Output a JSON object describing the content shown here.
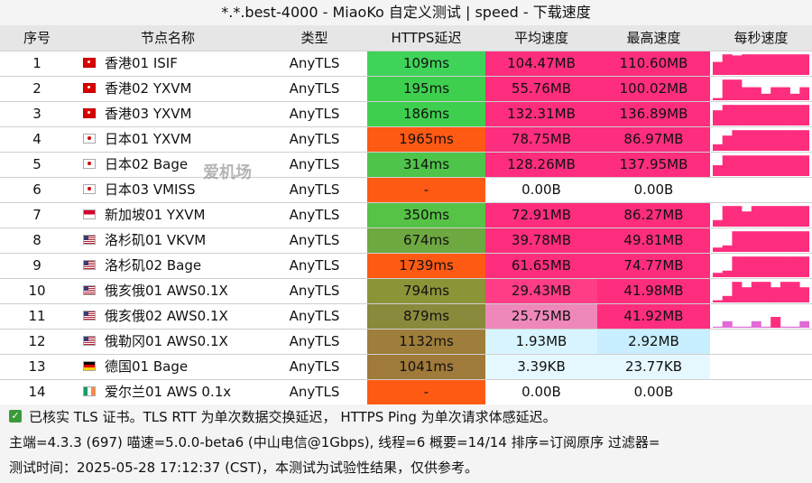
{
  "title": "*.*.best-4000 - MiaoKo 自定义测试 | speed - 下载速度",
  "columns": [
    "序号",
    "节点名称",
    "类型",
    "HTTPS延迟",
    "平均速度",
    "最高速度",
    "每秒速度"
  ],
  "colors": {
    "speed_pink": "#ff2d7e",
    "speed_lightpink": "#ee88bb",
    "speed_lightblue": "#d8f5ff",
    "lat_green": "#3fcf4f",
    "lat_orange": "#ff5a14",
    "lat_brown": "#a67a3a"
  },
  "rows": [
    {
      "idx": "1",
      "flag": "hk",
      "name": "香港01 ISIF",
      "type": "AnyTLS",
      "lat": "109ms",
      "lat_color": "#3fd35a",
      "avg": "104.47MB",
      "avg_color": "#ff2d7e",
      "max": "110.60MB",
      "max_color": "#ff2d7e",
      "spark": [
        0.6,
        0.95,
        0.9,
        0.95,
        0.95,
        0.95,
        0.95,
        0.95,
        0.95,
        0.95
      ]
    },
    {
      "idx": "2",
      "flag": "hk",
      "name": "香港02 YXVM",
      "type": "AnyTLS",
      "lat": "195ms",
      "lat_color": "#3fcf4f",
      "avg": "55.76MB",
      "avg_color": "#ff2d7e",
      "max": "100.02MB",
      "max_color": "#ff2d7e",
      "spark": [
        0.1,
        0.95,
        0.95,
        0.6,
        0.6,
        0.3,
        0.6,
        0.6,
        0.3,
        0.6
      ]
    },
    {
      "idx": "3",
      "flag": "hk",
      "name": "香港03 YXVM",
      "type": "AnyTLS",
      "lat": "186ms",
      "lat_color": "#3fcf4f",
      "avg": "132.31MB",
      "avg_color": "#ff2d7e",
      "max": "136.89MB",
      "max_color": "#ff2d7e",
      "spark": [
        0.7,
        0.95,
        0.95,
        0.95,
        0.95,
        0.95,
        0.95,
        0.95,
        0.95,
        0.95
      ]
    },
    {
      "idx": "4",
      "flag": "jp",
      "name": "日本01 YXVM",
      "type": "AnyTLS",
      "lat": "1965ms",
      "lat_color": "#ff5a14",
      "avg": "78.75MB",
      "avg_color": "#ff2d7e",
      "max": "86.97MB",
      "max_color": "#ff2d7e",
      "spark": [
        0.3,
        0.7,
        0.95,
        0.95,
        0.95,
        0.95,
        0.95,
        0.95,
        0.95,
        0.95
      ]
    },
    {
      "idx": "5",
      "flag": "jp",
      "name": "日本02 Bage",
      "type": "AnyTLS",
      "lat": "314ms",
      "lat_color": "#4ec44a",
      "avg": "128.26MB",
      "avg_color": "#ff2d7e",
      "max": "137.95MB",
      "max_color": "#ff2d7e",
      "spark": [
        0.5,
        0.95,
        0.95,
        0.95,
        0.95,
        0.95,
        0.95,
        0.95,
        0.95,
        0.95
      ]
    },
    {
      "idx": "6",
      "flag": "jp",
      "name": "日本03 VMISS",
      "type": "AnyTLS",
      "lat": "-",
      "lat_color": "#ff5a14",
      "avg": "0.00B",
      "avg_color": "#ffffff",
      "max": "0.00B",
      "max_color": "#ffffff",
      "spark": []
    },
    {
      "idx": "7",
      "flag": "sg",
      "name": "新加坡01 YXVM",
      "type": "AnyTLS",
      "lat": "350ms",
      "lat_color": "#56c246",
      "avg": "72.91MB",
      "avg_color": "#ff2d7e",
      "max": "86.27MB",
      "max_color": "#ff2d7e",
      "spark": [
        0.3,
        0.95,
        0.95,
        0.7,
        0.95,
        0.95,
        0.95,
        0.95,
        0.95,
        0.95
      ]
    },
    {
      "idx": "8",
      "flag": "us",
      "name": "洛杉矶01 VKVM",
      "type": "AnyTLS",
      "lat": "674ms",
      "lat_color": "#6ea840",
      "avg": "39.78MB",
      "avg_color": "#ff2d7e",
      "max": "49.81MB",
      "max_color": "#ff2d7e",
      "spark": [
        0.2,
        0.3,
        0.95,
        0.95,
        0.95,
        0.95,
        0.95,
        0.95,
        0.95,
        0.95
      ]
    },
    {
      "idx": "9",
      "flag": "us",
      "name": "洛杉矶02 Bage",
      "type": "AnyTLS",
      "lat": "1739ms",
      "lat_color": "#ff5a14",
      "avg": "61.65MB",
      "avg_color": "#ff2d7e",
      "max": "74.77MB",
      "max_color": "#ff2d7e",
      "spark": [
        0.2,
        0.3,
        0.95,
        0.95,
        0.95,
        0.95,
        0.95,
        0.95,
        0.95,
        0.95
      ]
    },
    {
      "idx": "10",
      "flag": "us",
      "name": "俄亥俄01 AWS0.1X",
      "type": "AnyTLS",
      "lat": "794ms",
      "lat_color": "#8c9438",
      "avg": "29.43MB",
      "avg_color": "#ff3d86",
      "max": "41.98MB",
      "max_color": "#ff2d7e",
      "spark": [
        0.1,
        0.3,
        0.95,
        0.7,
        0.95,
        0.95,
        0.7,
        0.95,
        0.95,
        0.7
      ]
    },
    {
      "idx": "11",
      "flag": "us",
      "name": "俄亥俄02 AWS0.1X",
      "type": "AnyTLS",
      "lat": "879ms",
      "lat_color": "#8a8a3c",
      "avg": "25.75MB",
      "avg_color": "#ee88bb",
      "max": "41.92MB",
      "max_color": "#ff2d7e",
      "spark": [
        0.05,
        0.3,
        0.05,
        0.05,
        0.3,
        0.05,
        0.5,
        0.05,
        0.05,
        0.3
      ]
    },
    {
      "idx": "12",
      "flag": "us",
      "name": "俄勒冈01 AWS0.1X",
      "type": "AnyTLS",
      "lat": "1132ms",
      "lat_color": "#9e7e3a",
      "avg": "1.93MB",
      "avg_color": "#d8f5ff",
      "max": "2.92MB",
      "max_color": "#c8eeff",
      "spark": []
    },
    {
      "idx": "13",
      "flag": "de",
      "name": "德国01 Bage",
      "type": "AnyTLS",
      "lat": "1041ms",
      "lat_color": "#a07a3a",
      "avg": "3.39KB",
      "avg_color": "#e6f8ff",
      "max": "23.77KB",
      "max_color": "#e6f8ff",
      "spark": []
    },
    {
      "idx": "14",
      "flag": "ie",
      "name": "爱尔兰01 AWS 0.1x",
      "type": "AnyTLS",
      "lat": "-",
      "lat_color": "#ff5a14",
      "avg": "0.00B",
      "avg_color": "#ffffff",
      "max": "0.00B",
      "max_color": "#ffffff",
      "spark": []
    }
  ],
  "footer": {
    "line1": "已核实 TLS 证书。TLS RTT 为单次数据交换延迟， HTTPS Ping 为单次请求体感延迟。",
    "line2": "主端=4.3.3 (697) 喵速=5.0.0-beta6 (中山电信@1Gbps), 线程=6 概要=14/14 排序=订阅原序 过滤器=",
    "line3": "测试时间：2025-05-28 17:12:37 (CST)，本测试为试验性结果，仅供参考。"
  },
  "watermark": "爱机场"
}
